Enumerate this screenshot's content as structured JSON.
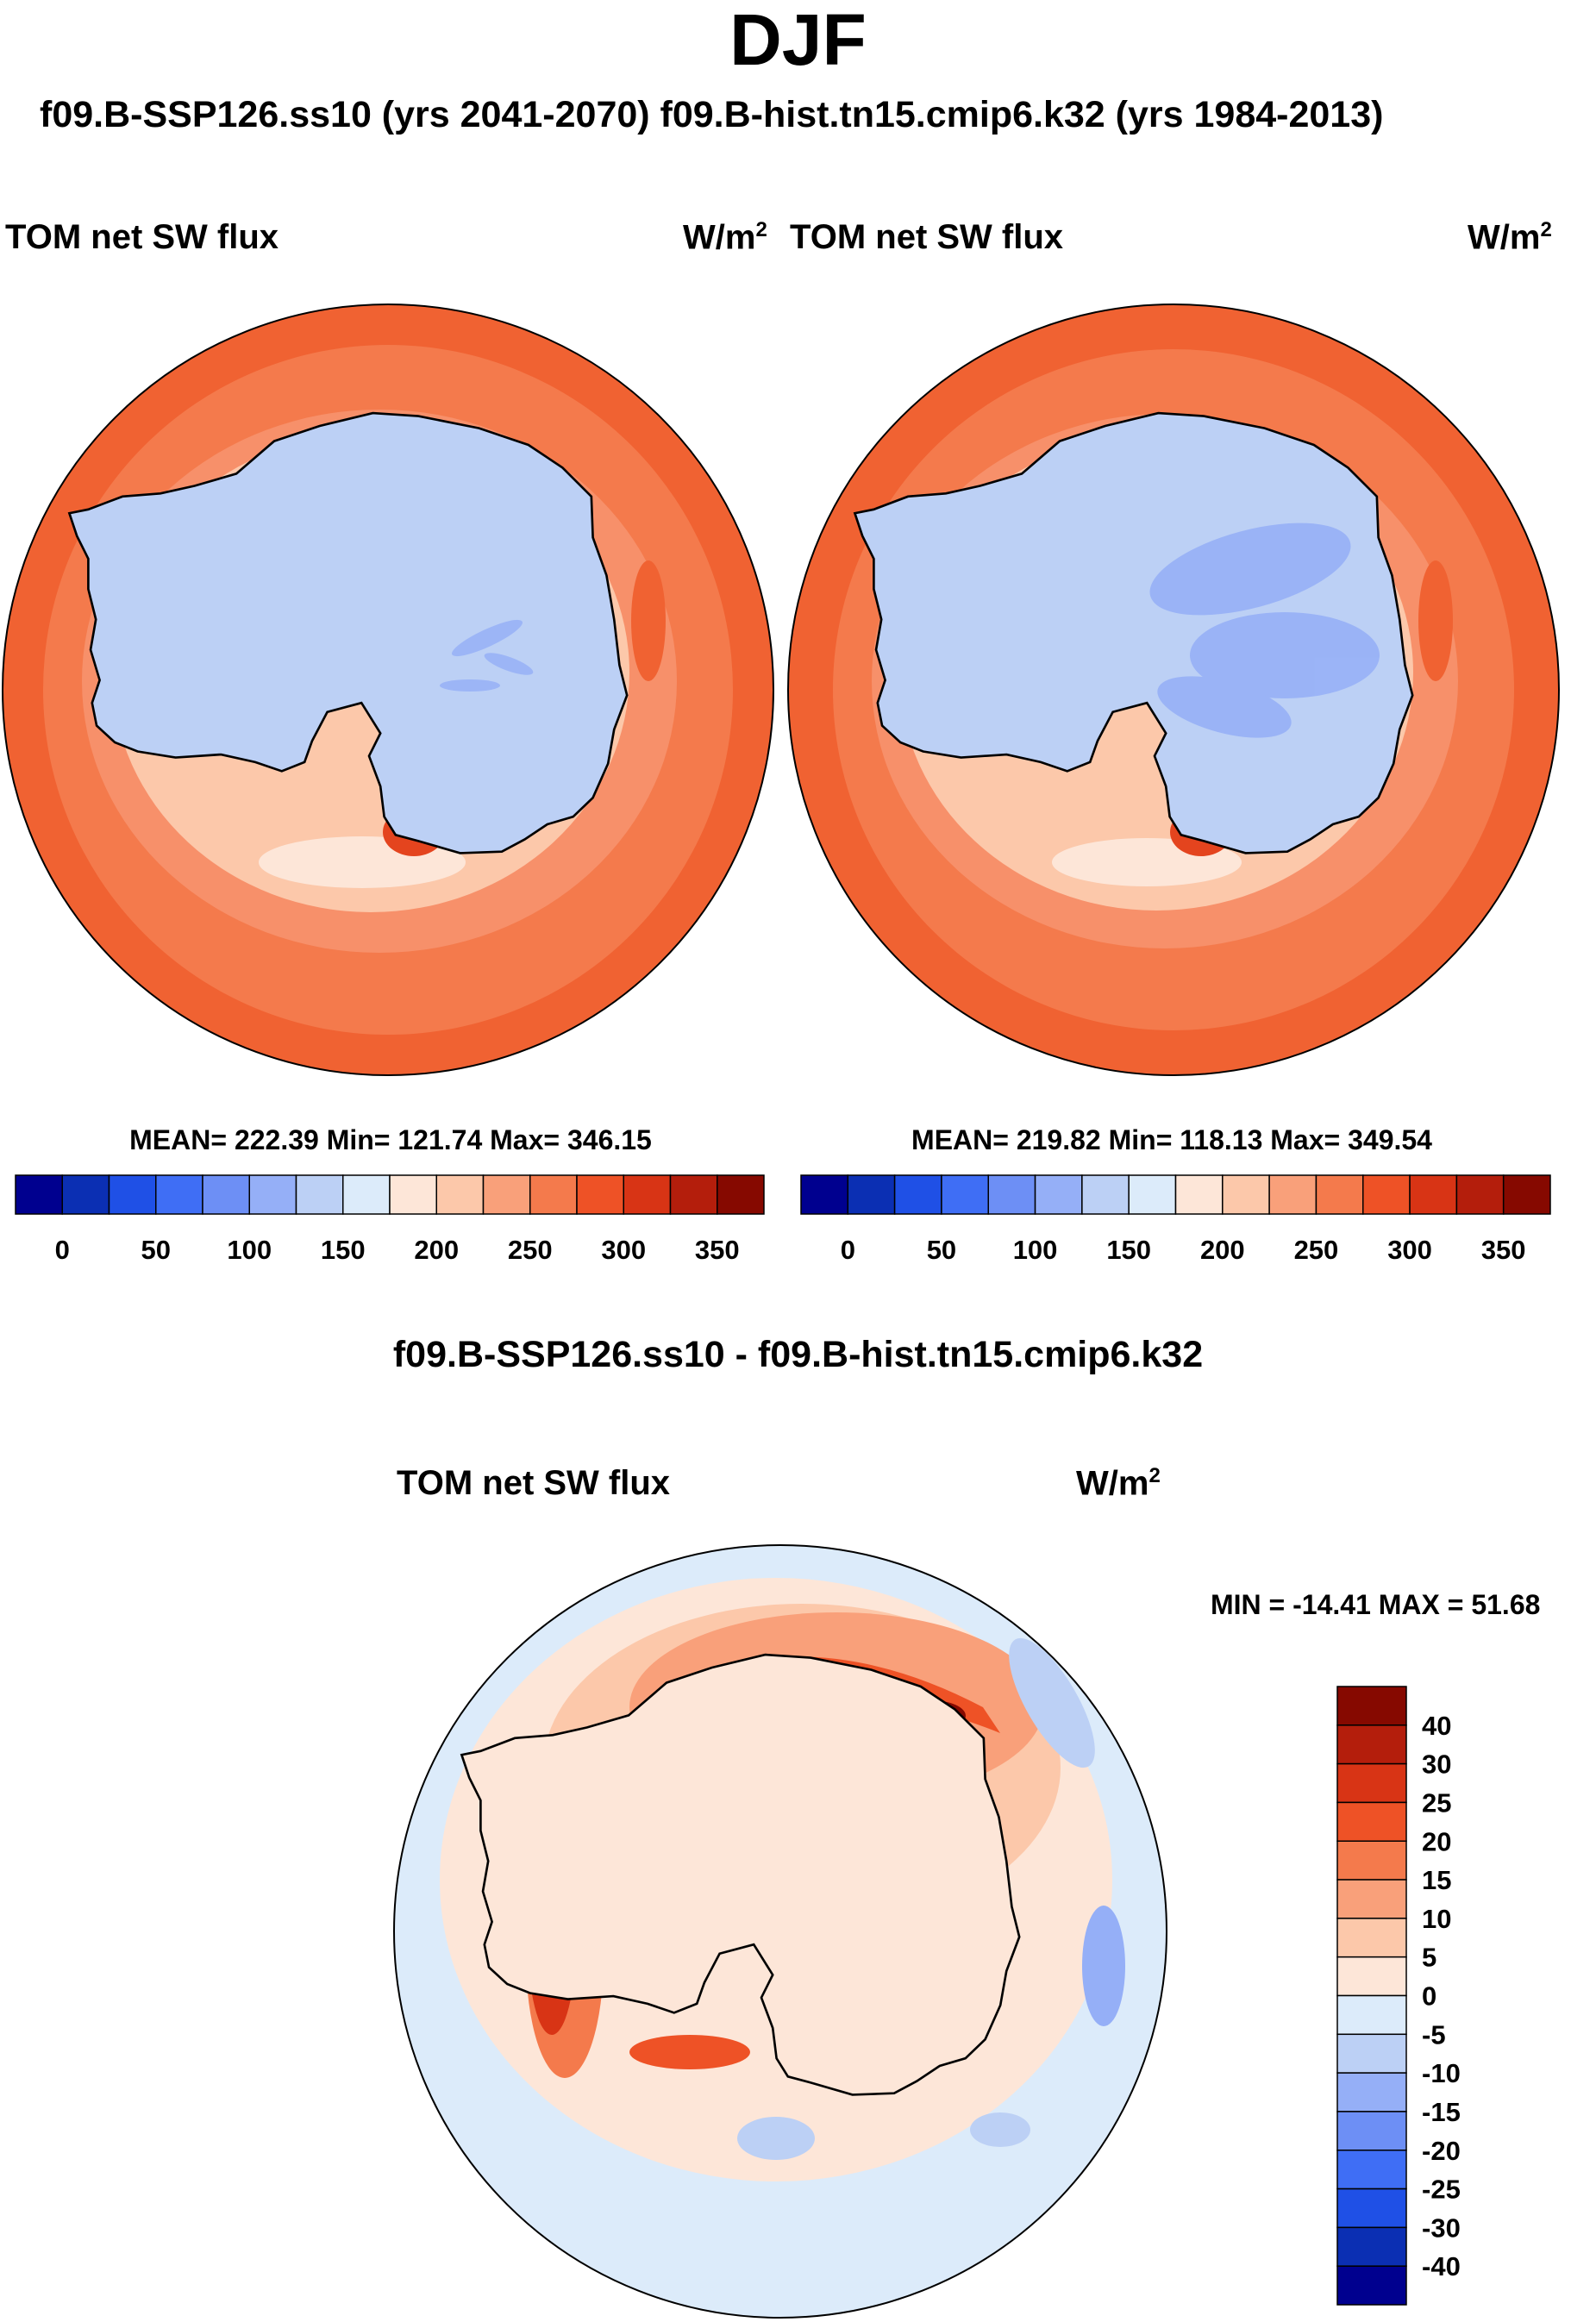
{
  "figure": {
    "title": "DJF",
    "subtitle": "f09.B-SSP126.ss10 (yrs 2041-2070)  f09.B-hist.tn15.cmip6.k32 (yrs 1984-2013)"
  },
  "panels": [
    {
      "id": "test",
      "variable": "TOM net SW flux",
      "units": "W/m",
      "units_exp": "2",
      "stats": "MEAN= 222.39  Min= 121.74  Max= 346.15",
      "colorbar": {
        "ticks": [
          "0",
          "50",
          "100",
          "150",
          "200",
          "250",
          "300",
          "350"
        ],
        "colors": [
          "#00008f",
          "#0b2fb3",
          "#1f50e6",
          "#3f6ef5",
          "#6d8ff5",
          "#95aff7",
          "#bcd0f5",
          "#dcebfa",
          "#fde6d8",
          "#fcc8aa",
          "#f9a07a",
          "#f47a4c",
          "#ee5226",
          "#d83415",
          "#b41e0c",
          "#860900"
        ]
      }
    },
    {
      "id": "control",
      "variable": "TOM net SW flux",
      "units": "W/m",
      "units_exp": "2",
      "stats": "MEAN= 219.82  Min= 118.13  Max= 349.54",
      "colorbar": {
        "ticks": [
          "0",
          "50",
          "100",
          "150",
          "200",
          "250",
          "300",
          "350"
        ],
        "colors": [
          "#00008f",
          "#0b2fb3",
          "#1f50e6",
          "#3f6ef5",
          "#6d8ff5",
          "#95aff7",
          "#bcd0f5",
          "#dcebfa",
          "#fde6d8",
          "#fcc8aa",
          "#f9a07a",
          "#f47a4c",
          "#ee5226",
          "#d83415",
          "#b41e0c",
          "#860900"
        ]
      }
    }
  ],
  "difference": {
    "title": "f09.B-SSP126.ss10 - f09.B-hist.tn15.cmip6.k32",
    "variable": "TOM net SW flux",
    "units": "W/m",
    "units_exp": "2",
    "stats": "MIN = -14.41 MAX =  51.68",
    "colorbar": {
      "ticks": [
        "40",
        "30",
        "25",
        "20",
        "15",
        "10",
        "5",
        "0",
        "-5",
        "-10",
        "-15",
        "-20",
        "-25",
        "-30",
        "-40"
      ],
      "colors": [
        "#860900",
        "#b41e0c",
        "#d83415",
        "#ee5226",
        "#f47a4c",
        "#f9a07a",
        "#fcc8aa",
        "#fde6d8",
        "#dcebfa",
        "#bcd0f5",
        "#95aff7",
        "#6d8ff5",
        "#3f6ef5",
        "#1f50e6",
        "#0b2fb3",
        "#00008f"
      ]
    }
  },
  "chart_data": {
    "type": "map",
    "projection": "south polar stereographic",
    "season": "DJF",
    "variable": "TOM net SW flux",
    "units": "W/m2",
    "maps": [
      {
        "name": "f09.B-SSP126.ss10 (yrs 2041-2070)",
        "mean": 222.39,
        "min": 121.74,
        "max": 346.15,
        "levels": [
          0,
          50,
          100,
          150,
          200,
          250,
          300,
          350
        ]
      },
      {
        "name": "f09.B-hist.tn15.cmip6.k32 (yrs 1984-2013)",
        "mean": 219.82,
        "min": 118.13,
        "max": 349.54,
        "levels": [
          0,
          50,
          100,
          150,
          200,
          250,
          300,
          350
        ]
      },
      {
        "name": "f09.B-SSP126.ss10 - f09.B-hist.tn15.cmip6.k32",
        "min": -14.41,
        "max": 51.68,
        "levels": [
          -40,
          -30,
          -25,
          -20,
          -15,
          -10,
          -5,
          0,
          5,
          10,
          15,
          20,
          25,
          30,
          40
        ]
      }
    ]
  }
}
